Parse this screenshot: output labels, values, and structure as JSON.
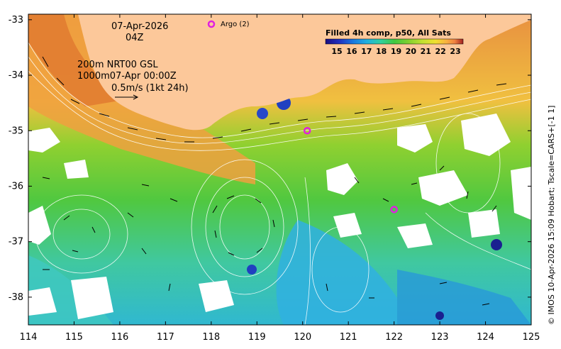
{
  "annotations": {
    "date": "07-Apr-2026",
    "hour": "04Z",
    "line1": "200m  NRT00 GSL",
    "line2": "1000m07-Apr 00:00Z",
    "line3": "0.5m/s (1kt 24h)"
  },
  "argo": {
    "legend_label": "Argo (2)",
    "color": "#e020e0",
    "floats": [
      {
        "lon": 120.1,
        "lat": -35.0
      },
      {
        "lon": 122.0,
        "lat": -36.42
      }
    ]
  },
  "legend": {
    "title": "Filled 4h comp, p50, All Sats",
    "ticks": [
      "15",
      "16",
      "17",
      "18",
      "19",
      "20",
      "21",
      "22",
      "23"
    ],
    "colormap": [
      "#1a0d80",
      "#2030c0",
      "#1878e0",
      "#20b0e0",
      "#30d0a0",
      "#40c840",
      "#80d030",
      "#c0e030",
      "#f0e030",
      "#f8b040",
      "#f08040",
      "#d04030",
      "#a02020"
    ]
  },
  "axes": {
    "x_ticks": [
      "114",
      "115",
      "116",
      "117",
      "118",
      "119",
      "120",
      "121",
      "122",
      "123",
      "124",
      "125"
    ],
    "y_ticks": [
      "-33",
      "-34",
      "-35",
      "-36",
      "-37",
      "-38"
    ],
    "lon_range": [
      114,
      125
    ],
    "lat_range": [
      -38.5,
      -32.9
    ]
  },
  "colors": {
    "land": "#fcc89a",
    "sst_warm": "#f0a040",
    "sst_mid": "#60d040",
    "sst_cool": "#30c0d0",
    "cloud": "#ffffff"
  },
  "credit": "© IMOS 10-Apr-2026 15:09 Hobart; Tscale=CARS+[-1 1]"
}
